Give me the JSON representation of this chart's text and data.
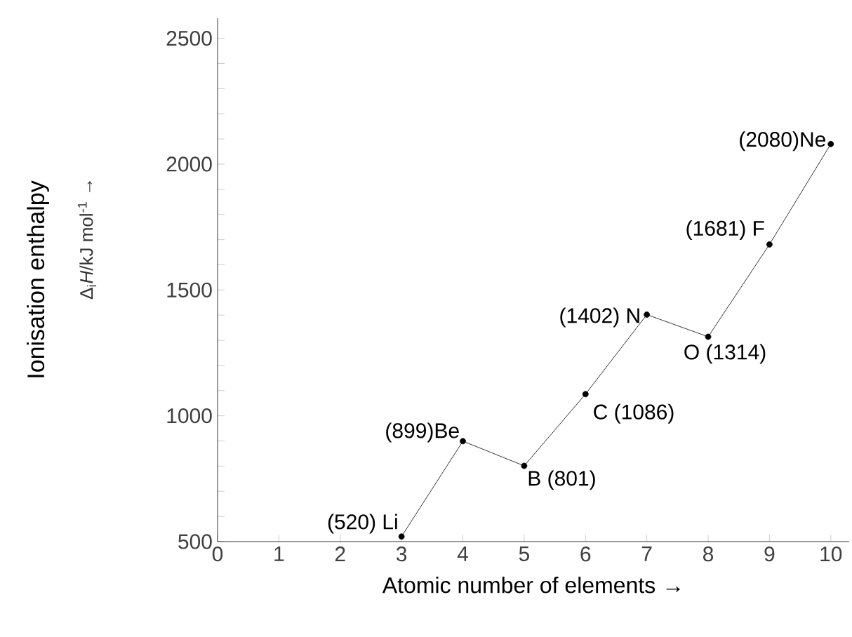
{
  "chart_data": {
    "type": "line",
    "xlabel": "Atomic number of elements →",
    "ylabel": "Ionisation enthalpy",
    "annotations": [
      "Δ$_{i}$*H*/kJ mol$^{-1}$ →"
    ],
    "x": [
      3,
      4,
      5,
      6,
      7,
      8,
      9,
      10
    ],
    "values": [
      520,
      899,
      801,
      1086,
      1402,
      1314,
      1681,
      2080
    ],
    "value_labels": [
      "(520) Li",
      "(899)Be",
      "B (801)",
      "C (1086)",
      "(1402) N",
      "O (1314)",
      "(1681) F",
      "(2080)Ne"
    ],
    "color": "#000000",
    "marker": "circle",
    "line_style": "solid",
    "grid": false,
    "xlim": [
      0,
      10.3
    ],
    "ylim": [
      500,
      2580
    ],
    "xticks": [
      0,
      1,
      2,
      3,
      4,
      5,
      6,
      7,
      8,
      9,
      10
    ],
    "yticks": [
      500,
      {
        "value": 600,
        "label": null
      },
      {
        "value": 700,
        "label": null
      },
      {
        "value": 800,
        "label": null
      },
      {
        "value": 900,
        "label": null
      },
      1000,
      {
        "value": 1100,
        "label": null
      },
      {
        "value": 1200,
        "label": null
      },
      {
        "value": 1300,
        "label": null
      },
      {
        "value": 1400,
        "label": null
      },
      1500,
      {
        "value": 1600,
        "label": null
      },
      {
        "value": 1700,
        "label": null
      },
      {
        "value": 1800,
        "label": null
      },
      {
        "value": 1900,
        "label": null
      },
      2000,
      {
        "value": 2100,
        "label": null
      },
      {
        "value": 2200,
        "label": null
      },
      {
        "value": 2300,
        "label": null
      },
      {
        "value": 2400,
        "label": null
      },
      2500
    ]
  }
}
